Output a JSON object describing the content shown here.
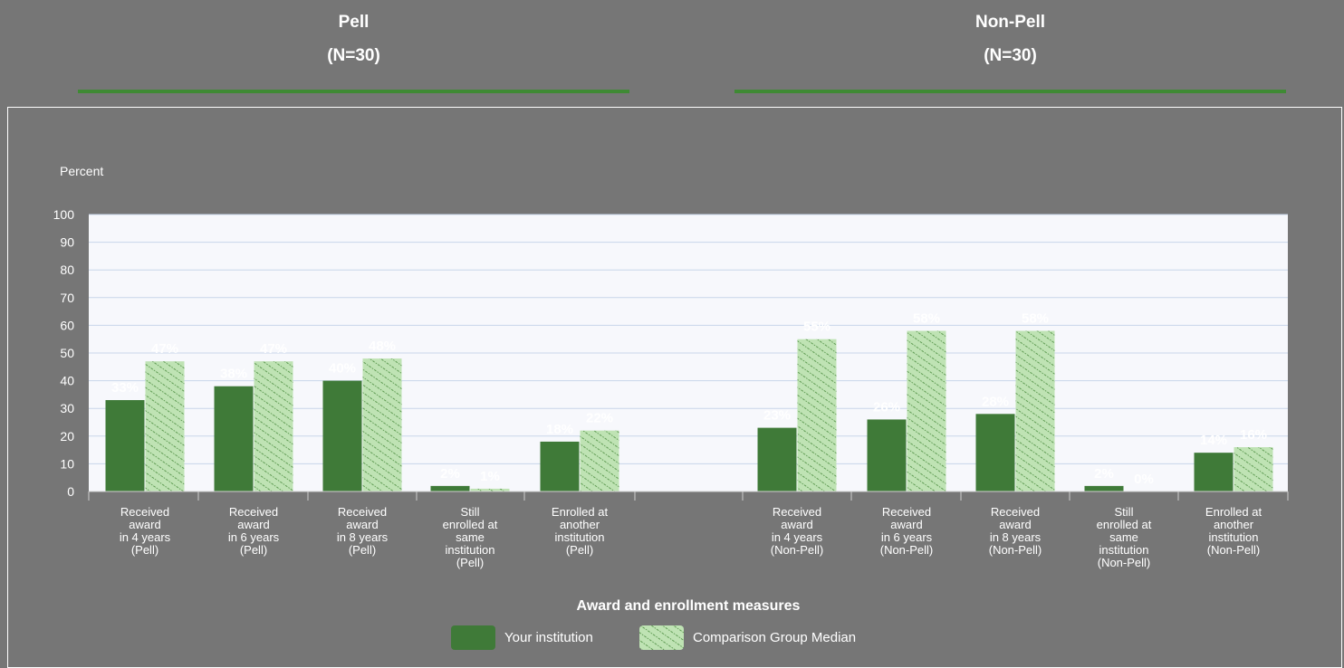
{
  "groups": [
    {
      "title": "Pell",
      "n": "(N=30)"
    },
    {
      "title": "Non-Pell",
      "n": "(N=30)"
    }
  ],
  "colors": {
    "your_institution": "#3f7a38",
    "comparison": "#bfe3b4",
    "comparison_hatch": "#5e9a52",
    "plot_bg": "#f7f8fc",
    "grid": "#c8d6ea"
  },
  "chart_data": {
    "type": "bar",
    "ylabel": "Percent",
    "xlabel": "Award and enrollment measures",
    "ylim": [
      0,
      100
    ],
    "yticks": [
      "0",
      "10",
      "20",
      "30",
      "40",
      "50",
      "60",
      "70",
      "80",
      "90",
      "100"
    ],
    "grid": true,
    "legend_placement": "bottom-center",
    "categories": [
      [
        "Received",
        "award",
        "in 4 years",
        "(Pell)"
      ],
      [
        "Received",
        "award",
        "in 6 years",
        "(Pell)"
      ],
      [
        "Received",
        "award",
        "in 8 years",
        "(Pell)"
      ],
      [
        "Still",
        "enrolled at",
        "same",
        "institution",
        "(Pell)"
      ],
      [
        "Enrolled at",
        "another",
        "institution",
        "(Pell)"
      ],
      null,
      [
        "Received",
        "award",
        "in 4 years",
        "(Non-Pell)"
      ],
      [
        "Received",
        "award",
        "in 6 years",
        "(Non-Pell)"
      ],
      [
        "Received",
        "award",
        "in 8 years",
        "(Non-Pell)"
      ],
      [
        "Still",
        "enrolled at",
        "same",
        "institution",
        "(Non-Pell)"
      ],
      [
        "Enrolled at",
        "another",
        "institution",
        "(Non-Pell)"
      ]
    ],
    "series": [
      {
        "name": "Your institution",
        "values": [
          33,
          38,
          40,
          2,
          18,
          null,
          23,
          26,
          28,
          2,
          14
        ],
        "labels": [
          "33%",
          "38%",
          "40%",
          "2%",
          "18%",
          null,
          "23%",
          "26%",
          "28%",
          "2%",
          "14%"
        ]
      },
      {
        "name": "Comparison Group Median",
        "values": [
          47,
          47,
          48,
          1,
          22,
          null,
          55,
          58,
          58,
          0,
          16
        ],
        "labels": [
          "47%",
          "47%",
          "48%",
          "1%",
          "22%",
          null,
          "55%",
          "58%",
          "58%",
          "0%",
          "16%"
        ]
      }
    ]
  }
}
